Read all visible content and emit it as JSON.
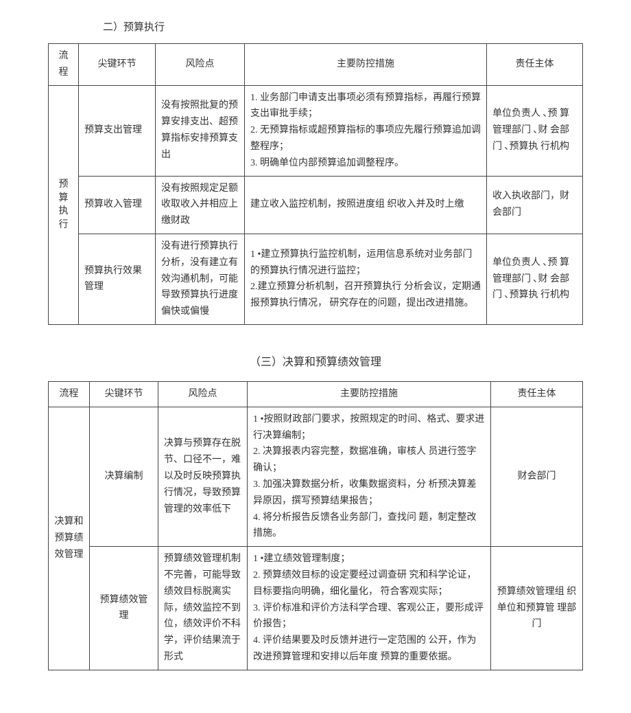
{
  "section1": {
    "title": "二）预算执行",
    "headers": [
      "流程",
      "尖键环节",
      "风险点",
      "主要防控措施",
      "责任主体"
    ],
    "process": "预算执行",
    "rows": [
      {
        "key": "预算支出管理",
        "risk": "没有按照批复的预算安排支出、超预算指标安排预算支出",
        "measures": "1. 业务部门申请支出事项必须有预算指标，再履行预算支出审批手续；\n2. 无预算指标或超预算指标的事项应先履行预算追加调整程序；\n3. 明确单位内部预算追加调整程序。",
        "owner": "单位负责人 ､预 算管理部门 ､财 会部门 ､预算执 行机构"
      },
      {
        "key": "预算收入管理",
        "risk": "没有按照规定足额收取收入并相应上缴财政",
        "measures": "建立收入监控机制，按照进度组 织收入并及时上缴",
        "owner": "收入执收部门，财会部门"
      },
      {
        "key": "预算执行效果管理",
        "risk": "没有进行预算执行分析，没有建立有效沟通机制，可能导致预算执行进度偏快或偏慢",
        "measures": "1 •建立预算执行监控机制，运用信息系统对业务部门的预算执行情况进行监控；\n2.建立预算分析机制，召开预算执行 分析会议，定期通报预算执行情况， 研究存在的问题，提出改进措施。",
        "owner": "单位负责人 ､预 算管理部门 ､财 会部门 ､预算执 行机构"
      }
    ]
  },
  "section2": {
    "title": "（三）决算和预算绩效管理",
    "headers": [
      "流程",
      "尖键环节",
      "风险点",
      "主要防控措施",
      "责任主体"
    ],
    "process": "决算和预算绩效管理",
    "rows": [
      {
        "key": "决算编制",
        "risk": "决算与预算存在脱节、口径不一，难以及时反映预算执行情况，导致预算管理的效率低下",
        "measures": "1 •按照财政部门要求，按照规定的时间、格式、要求进行决算编制；\n2. 决算报表内容完整，数据准确，审核人 员进行签字确认；\n3. 加强决算数据分析，收集数据资料，分 析预决算差异原因，撰写预算结果报告；\n4. 将分析报告反馈各业务部门，查找问 题，制定整改措施。",
        "owner": "财会部门"
      },
      {
        "key": "预算绩效管理",
        "risk": "预算绩效管理机制不完善，可能导致绩效目标脱离实际，绩效监控不到位，绩效评价不科学，评价结果流于形式",
        "measures": "1 •建立绩效管理制度；\n2. 预算绩效目标的设定要经过调查研 究和科学论证，目标要指向明确，细化量化， 符合客观实际；\n3. 评价标准和评价方法科学合理、客观公正，要形成评价报告；\n4. 评价结果要及时反馈并进行一定范围的 公开，作为改进预算管理和安排以后年度 预算的重要依据。",
        "owner": "预算绩效管理组 织单位和预算管 理部门"
      }
    ]
  }
}
